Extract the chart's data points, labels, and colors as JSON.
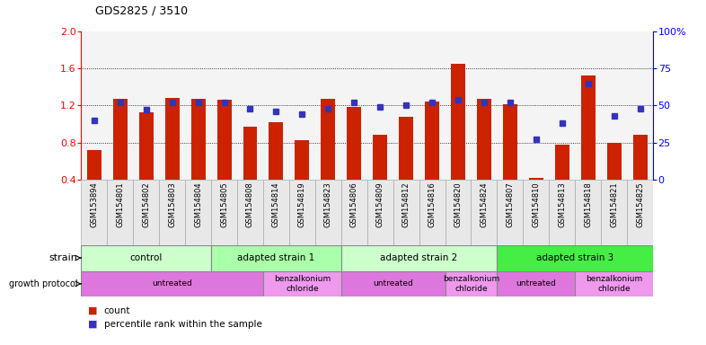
{
  "title": "GDS2825 / 3510",
  "samples": [
    "GSM153894",
    "GSM154801",
    "GSM154802",
    "GSM154803",
    "GSM154804",
    "GSM154805",
    "GSM154808",
    "GSM154814",
    "GSM154819",
    "GSM154823",
    "GSM154806",
    "GSM154809",
    "GSM154812",
    "GSM154816",
    "GSM154820",
    "GSM154824",
    "GSM154807",
    "GSM154810",
    "GSM154813",
    "GSM154818",
    "GSM154821",
    "GSM154825"
  ],
  "count_values": [
    0.72,
    1.27,
    1.13,
    1.28,
    1.27,
    1.26,
    0.97,
    1.02,
    0.83,
    1.27,
    1.18,
    0.88,
    1.08,
    1.24,
    1.65,
    1.27,
    1.21,
    0.42,
    0.78,
    1.52,
    0.8,
    0.88
  ],
  "percentile_values": [
    40,
    52,
    47,
    52,
    52,
    52,
    48,
    46,
    44,
    48,
    52,
    49,
    50,
    52,
    54,
    52,
    52,
    27,
    38,
    65,
    43,
    48
  ],
  "ylim_left": [
    0.4,
    2.0
  ],
  "ylim_right": [
    0,
    100
  ],
  "yticks_left": [
    0.4,
    0.8,
    1.2,
    1.6,
    2.0
  ],
  "yticks_right": [
    0,
    25,
    50,
    75,
    100
  ],
  "ytick_labels_right": [
    "0",
    "25",
    "50",
    "75",
    "100%"
  ],
  "bar_color": "#cc2200",
  "dot_color": "#3333bb",
  "col_bg": "#dddddd",
  "strain_groups": [
    {
      "label": "control",
      "start": 0,
      "end": 5,
      "color": "#ccffcc"
    },
    {
      "label": "adapted strain 1",
      "start": 5,
      "end": 10,
      "color": "#aaffaa"
    },
    {
      "label": "adapted strain 2",
      "start": 10,
      "end": 16,
      "color": "#ccffcc"
    },
    {
      "label": "adapted strain 3",
      "start": 16,
      "end": 22,
      "color": "#44ee44"
    }
  ],
  "protocol_groups": [
    {
      "label": "untreated",
      "start": 0,
      "end": 7,
      "color": "#dd77dd"
    },
    {
      "label": "benzalkonium\nchloride",
      "start": 7,
      "end": 10,
      "color": "#ee99ee"
    },
    {
      "label": "untreated",
      "start": 10,
      "end": 14,
      "color": "#dd77dd"
    },
    {
      "label": "benzalkonium\nchloride",
      "start": 14,
      "end": 16,
      "color": "#ee99ee"
    },
    {
      "label": "untreated",
      "start": 16,
      "end": 19,
      "color": "#dd77dd"
    },
    {
      "label": "benzalkonium\nchloride",
      "start": 19,
      "end": 22,
      "color": "#ee99ee"
    }
  ],
  "legend_count_label": "count",
  "legend_pct_label": "percentile rank within the sample"
}
